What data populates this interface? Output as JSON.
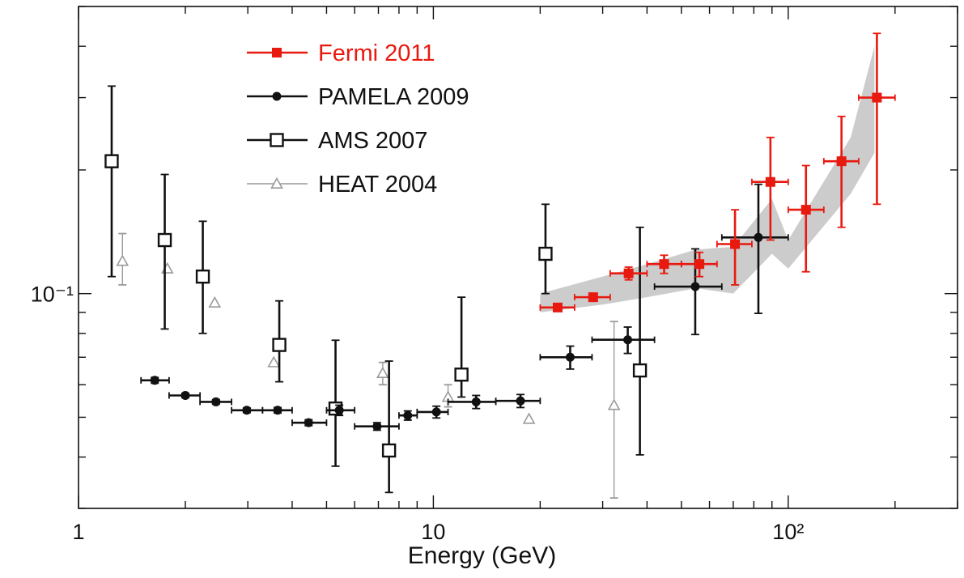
{
  "chart_data": {
    "type": "scatter",
    "title": "",
    "xlabel": "Energy (GeV)",
    "ylabel": "",
    "x_scale": "log",
    "y_scale": "log",
    "xlim": [
      1,
      300
    ],
    "ylim": [
      0.03,
      0.5
    ],
    "grid": false,
    "legend_position": "top-left",
    "x_tick_labels": [
      {
        "value": 1,
        "label": "1"
      },
      {
        "value": 10,
        "label": "10"
      },
      {
        "value": 100,
        "label": "10²"
      }
    ],
    "y_tick_labels": [
      {
        "value": 0.1,
        "label": "10⁻¹"
      }
    ],
    "band": {
      "description": "systematic uncertainty band",
      "color": "#cccccc",
      "upper": [
        [
          20,
          0.1
        ],
        [
          30,
          0.11
        ],
        [
          40,
          0.118
        ],
        [
          55,
          0.128
        ],
        [
          70,
          0.13
        ],
        [
          90,
          0.17
        ],
        [
          100,
          0.135
        ],
        [
          150,
          0.24
        ],
        [
          175,
          0.4
        ]
      ],
      "lower": [
        [
          20,
          0.09
        ],
        [
          30,
          0.094
        ],
        [
          40,
          0.098
        ],
        [
          55,
          0.103
        ],
        [
          70,
          0.1
        ],
        [
          90,
          0.125
        ],
        [
          100,
          0.115
        ],
        [
          150,
          0.175
        ],
        [
          175,
          0.22
        ]
      ]
    },
    "series": [
      {
        "name": "Fermi 2011",
        "color": "#e8190f",
        "marker": "filled-square",
        "points": [
          {
            "x": 22.4,
            "y": 0.0925,
            "xlo": 20,
            "xhi": 25,
            "ylo": 0.0915,
            "yhi": 0.0935
          },
          {
            "x": 28.2,
            "y": 0.098,
            "xlo": 25,
            "xhi": 31.5,
            "ylo": 0.097,
            "yhi": 0.099
          },
          {
            "x": 35.5,
            "y": 0.112,
            "xlo": 31.5,
            "xhi": 40,
            "ylo": 0.108,
            "yhi": 0.116
          },
          {
            "x": 44.7,
            "y": 0.118,
            "xlo": 40,
            "xhi": 50,
            "ylo": 0.112,
            "yhi": 0.124
          },
          {
            "x": 56.2,
            "y": 0.118,
            "xlo": 50,
            "xhi": 63,
            "ylo": 0.11,
            "yhi": 0.126
          },
          {
            "x": 70.8,
            "y": 0.132,
            "xlo": 63,
            "xhi": 79,
            "ylo": 0.105,
            "yhi": 0.16
          },
          {
            "x": 89.1,
            "y": 0.187,
            "xlo": 79,
            "xhi": 100,
            "ylo": 0.135,
            "yhi": 0.24
          },
          {
            "x": 112.2,
            "y": 0.16,
            "xlo": 100,
            "xhi": 126,
            "ylo": 0.113,
            "yhi": 0.205
          },
          {
            "x": 141.3,
            "y": 0.21,
            "xlo": 126,
            "xhi": 158,
            "ylo": 0.145,
            "yhi": 0.27
          },
          {
            "x": 177.8,
            "y": 0.3,
            "xlo": 158,
            "xhi": 200,
            "ylo": 0.165,
            "yhi": 0.43
          }
        ]
      },
      {
        "name": "PAMELA 2009",
        "color": "#111111",
        "marker": "filled-circle",
        "points": [
          {
            "x": 1.64,
            "y": 0.0615,
            "xlo": 1.5,
            "xhi": 1.8,
            "ylo": 0.0605,
            "yhi": 0.0625
          },
          {
            "x": 2.0,
            "y": 0.0565,
            "xlo": 1.8,
            "xhi": 2.2,
            "ylo": 0.0558,
            "yhi": 0.0572
          },
          {
            "x": 2.44,
            "y": 0.0545,
            "xlo": 2.2,
            "xhi": 2.7,
            "ylo": 0.0538,
            "yhi": 0.0552
          },
          {
            "x": 2.98,
            "y": 0.052,
            "xlo": 2.7,
            "xhi": 3.3,
            "ylo": 0.0513,
            "yhi": 0.0527
          },
          {
            "x": 3.64,
            "y": 0.052,
            "xlo": 3.3,
            "xhi": 4.0,
            "ylo": 0.0512,
            "yhi": 0.0528
          },
          {
            "x": 4.45,
            "y": 0.0485,
            "xlo": 4.0,
            "xhi": 5.0,
            "ylo": 0.0477,
            "yhi": 0.0493
          },
          {
            "x": 5.43,
            "y": 0.052,
            "xlo": 5.0,
            "xhi": 6.0,
            "ylo": 0.0505,
            "yhi": 0.0535
          },
          {
            "x": 6.94,
            "y": 0.0475,
            "xlo": 6.0,
            "xhi": 8.0,
            "ylo": 0.0465,
            "yhi": 0.0485
          },
          {
            "x": 8.47,
            "y": 0.0505,
            "xlo": 8.0,
            "xhi": 9.0,
            "ylo": 0.0492,
            "yhi": 0.0518
          },
          {
            "x": 10.2,
            "y": 0.0515,
            "xlo": 9.0,
            "xhi": 11.0,
            "ylo": 0.0498,
            "yhi": 0.0532
          },
          {
            "x": 13.2,
            "y": 0.0545,
            "xlo": 11.0,
            "xhi": 15.0,
            "ylo": 0.0525,
            "yhi": 0.0565
          },
          {
            "x": 17.6,
            "y": 0.0548,
            "xlo": 15.0,
            "xhi": 20.0,
            "ylo": 0.0528,
            "yhi": 0.0568
          },
          {
            "x": 24.3,
            "y": 0.07,
            "xlo": 20.0,
            "xhi": 28.0,
            "ylo": 0.0655,
            "yhi": 0.0745
          },
          {
            "x": 35.3,
            "y": 0.0772,
            "xlo": 28.0,
            "xhi": 42.0,
            "ylo": 0.0715,
            "yhi": 0.0829
          },
          {
            "x": 54.7,
            "y": 0.104,
            "xlo": 42.0,
            "xhi": 65.0,
            "ylo": 0.0795,
            "yhi": 0.1285
          },
          {
            "x": 82.4,
            "y": 0.137,
            "xlo": 65.0,
            "xhi": 100.0,
            "ylo": 0.0895,
            "yhi": 0.1845
          }
        ]
      },
      {
        "name": "AMS 2007",
        "color": "#111111",
        "marker": "open-square",
        "points": [
          {
            "x": 1.24,
            "y": 0.21,
            "ylo": 0.11,
            "yhi": 0.32
          },
          {
            "x": 1.75,
            "y": 0.135,
            "ylo": 0.082,
            "yhi": 0.195
          },
          {
            "x": 2.24,
            "y": 0.11,
            "ylo": 0.08,
            "yhi": 0.15
          },
          {
            "x": 3.68,
            "y": 0.075,
            "ylo": 0.061,
            "yhi": 0.096
          },
          {
            "x": 5.3,
            "y": 0.0525,
            "ylo": 0.038,
            "yhi": 0.077
          },
          {
            "x": 7.5,
            "y": 0.0415,
            "ylo": 0.0328,
            "yhi": 0.0685
          },
          {
            "x": 12.0,
            "y": 0.0635,
            "ylo": 0.056,
            "yhi": 0.098
          },
          {
            "x": 20.7,
            "y": 0.125,
            "ylo": 0.1,
            "yhi": 0.165
          },
          {
            "x": 38.2,
            "y": 0.065,
            "ylo": 0.0405,
            "yhi": 0.145
          }
        ]
      },
      {
        "name": "HEAT 2004",
        "color": "#9a9a9a",
        "marker": "open-triangle",
        "points": [
          {
            "x": 1.33,
            "y": 0.12,
            "ylo": 0.105,
            "yhi": 0.14
          },
          {
            "x": 1.78,
            "y": 0.115
          },
          {
            "x": 2.42,
            "y": 0.095
          },
          {
            "x": 3.55,
            "y": 0.068
          },
          {
            "x": 7.2,
            "y": 0.064,
            "ylo": 0.06,
            "yhi": 0.068
          },
          {
            "x": 11.0,
            "y": 0.056,
            "ylo": 0.053,
            "yhi": 0.06
          },
          {
            "x": 18.6,
            "y": 0.0495
          },
          {
            "x": 32.3,
            "y": 0.0535,
            "ylo": 0.0318,
            "yhi": 0.0855
          }
        ]
      }
    ]
  }
}
